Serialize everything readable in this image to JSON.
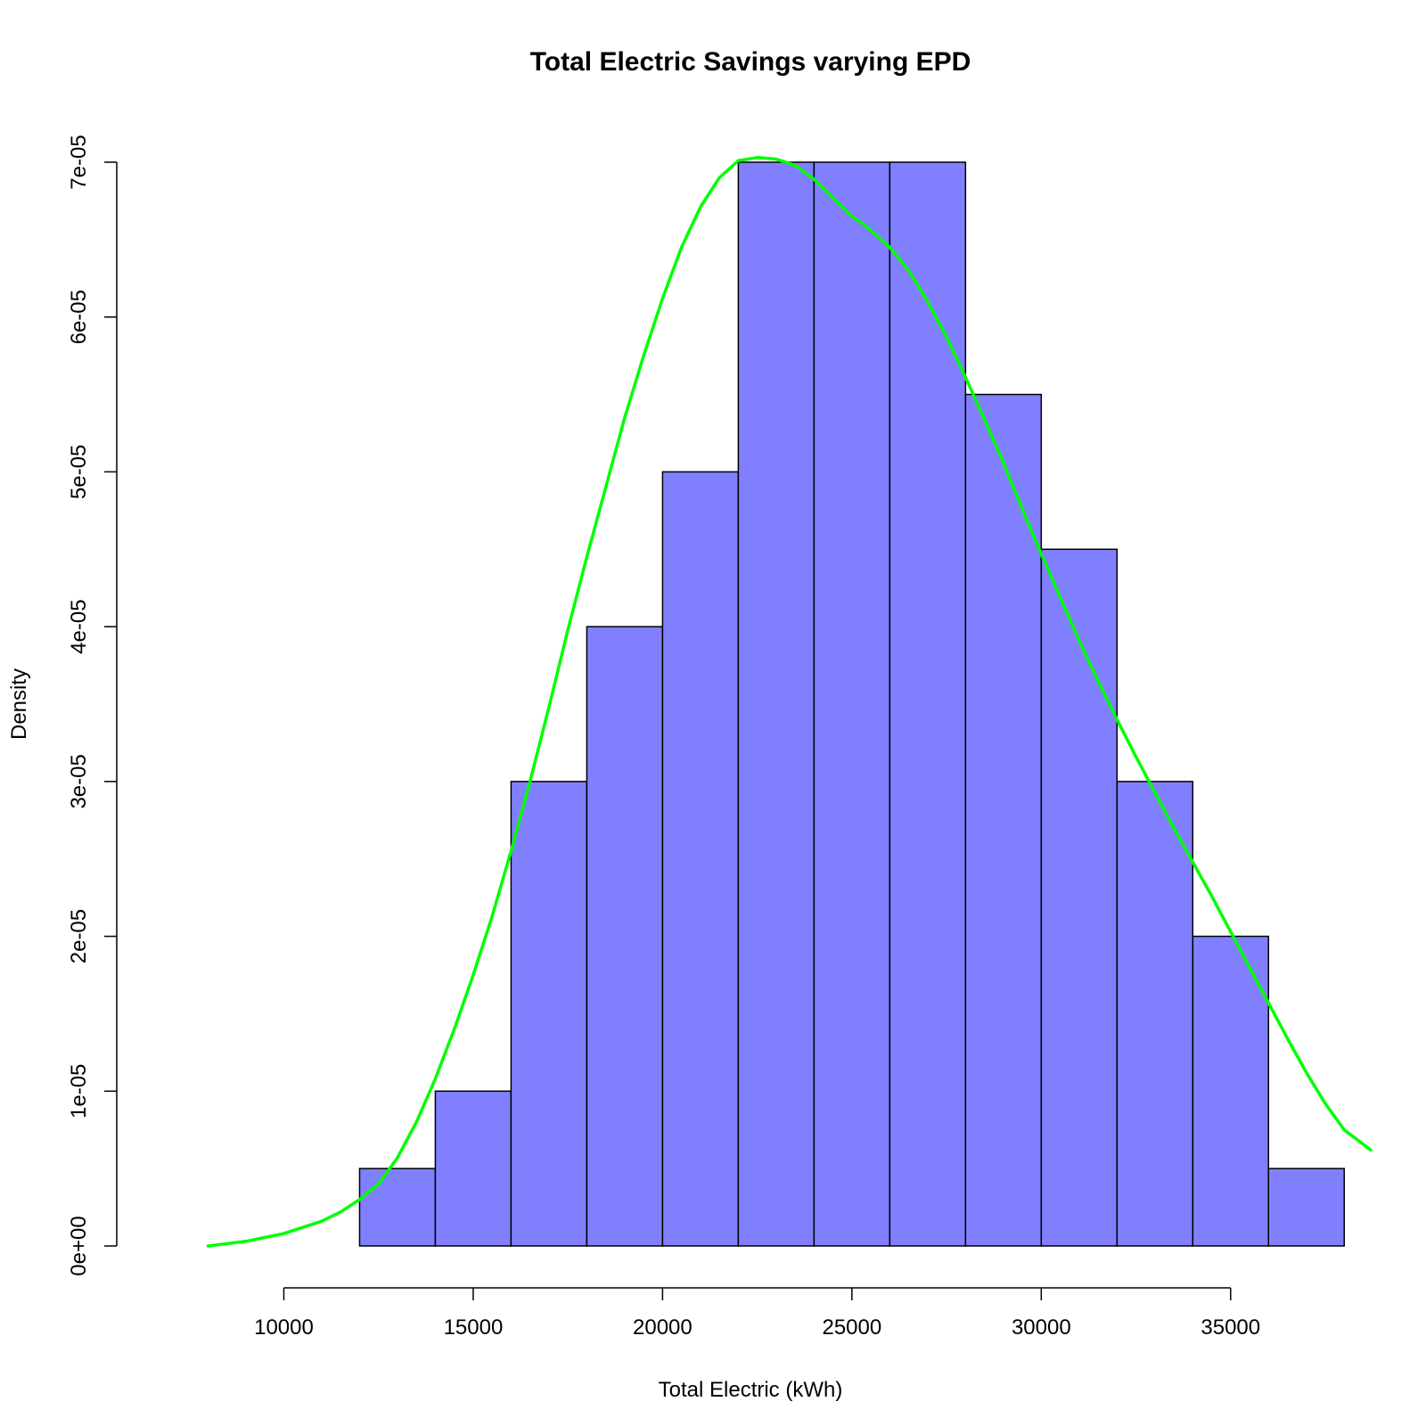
{
  "chart_data": {
    "type": "bar",
    "title": "Total Electric Savings varying EPD",
    "xlabel": "Total Electric (kWh)",
    "ylabel": "Density",
    "xlim": [
      7800,
      38700
    ],
    "ylim": [
      0,
      7e-05
    ],
    "grid": false,
    "colors": {
      "bar_fill": "#8080FF",
      "bar_stroke": "#000000",
      "density_line": "#00FF00"
    },
    "x_ticks": [
      {
        "value": 10000,
        "label": "10000"
      },
      {
        "value": 15000,
        "label": "15000"
      },
      {
        "value": 20000,
        "label": "20000"
      },
      {
        "value": 25000,
        "label": "25000"
      },
      {
        "value": 30000,
        "label": "30000"
      },
      {
        "value": 35000,
        "label": "35000"
      }
    ],
    "y_ticks": [
      {
        "value": 0,
        "label": "0e+00"
      },
      {
        "value": 1e-05,
        "label": "1e-05"
      },
      {
        "value": 2e-05,
        "label": "2e-05"
      },
      {
        "value": 3e-05,
        "label": "3e-05"
      },
      {
        "value": 4e-05,
        "label": "4e-05"
      },
      {
        "value": 5e-05,
        "label": "5e-05"
      },
      {
        "value": 6e-05,
        "label": "6e-05"
      },
      {
        "value": 7e-05,
        "label": "7e-05"
      }
    ],
    "bins": [
      {
        "start": 12000,
        "end": 14000,
        "density": 5e-06
      },
      {
        "start": 14000,
        "end": 16000,
        "density": 1e-05
      },
      {
        "start": 16000,
        "end": 18000,
        "density": 3e-05
      },
      {
        "start": 18000,
        "end": 20000,
        "density": 4e-05
      },
      {
        "start": 20000,
        "end": 22000,
        "density": 5e-05
      },
      {
        "start": 22000,
        "end": 24000,
        "density": 7e-05
      },
      {
        "start": 24000,
        "end": 26000,
        "density": 7e-05
      },
      {
        "start": 26000,
        "end": 28000,
        "density": 7e-05
      },
      {
        "start": 28000,
        "end": 30000,
        "density": 5.5e-05
      },
      {
        "start": 30000,
        "end": 32000,
        "density": 4.5e-05
      },
      {
        "start": 32000,
        "end": 34000,
        "density": 3e-05
      },
      {
        "start": 34000,
        "end": 36000,
        "density": 2e-05
      },
      {
        "start": 36000,
        "end": 38000,
        "density": 5e-06
      }
    ],
    "density_curve": {
      "x": [
        8000,
        9000,
        10000,
        11000,
        11500,
        12000,
        12500,
        13000,
        13500,
        14000,
        14500,
        15000,
        15500,
        16000,
        16500,
        17000,
        17500,
        18000,
        18500,
        19000,
        19500,
        20000,
        20500,
        21000,
        21500,
        22000,
        22500,
        23000,
        23500,
        24000,
        24500,
        25000,
        25300,
        25500,
        26000,
        26500,
        27000,
        27500,
        28000,
        28500,
        29000,
        29500,
        30000,
        30500,
        31000,
        31500,
        32000,
        32500,
        33000,
        33500,
        34000,
        34500,
        35000,
        35500,
        36000,
        36500,
        37000,
        37500,
        38000,
        38700
      ],
      "y": [
        0.0,
        3e-07,
        8e-07,
        1.6e-06,
        2.2e-06,
        3e-06,
        4e-06,
        5.7e-06,
        8e-06,
        1.08e-05,
        1.4e-05,
        1.75e-05,
        2.13e-05,
        2.55e-05,
        3e-05,
        3.48e-05,
        3.98e-05,
        4.45e-05,
        4.9e-05,
        5.35e-05,
        5.75e-05,
        6.12e-05,
        6.45e-05,
        6.71e-05,
        6.9e-05,
        7.01e-05,
        7.03e-05,
        7.02e-05,
        6.98e-05,
        6.89e-05,
        6.77e-05,
        6.65e-05,
        6.6e-05,
        6.56e-05,
        6.45e-05,
        6.3e-05,
        6.1e-05,
        5.87e-05,
        5.61e-05,
        5.34e-05,
        5.06e-05,
        4.76e-05,
        4.47e-05,
        4.19e-05,
        3.91e-05,
        3.65e-05,
        3.4e-05,
        3.16e-05,
        2.93e-05,
        2.7e-05,
        2.48e-05,
        2.26e-05,
        2.03e-05,
        1.8e-05,
        1.57e-05,
        1.34e-05,
        1.12e-05,
        9.2e-06,
        7.5e-06,
        6.2e-06
      ]
    }
  }
}
